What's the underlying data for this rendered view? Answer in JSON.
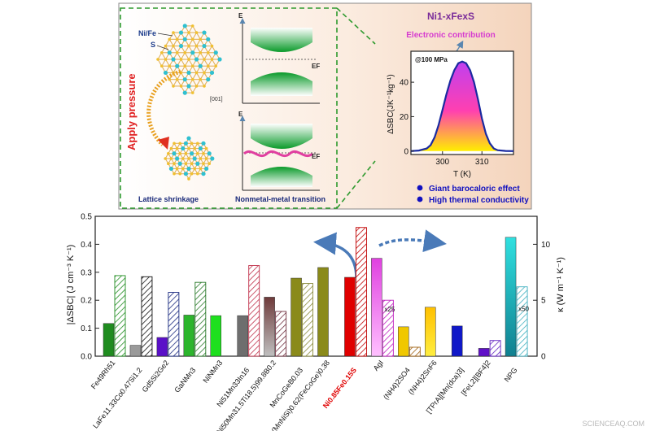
{
  "top_panel": {
    "formula": "Ni1-xFexS",
    "electronic_contribution": "Electronic contribution",
    "apply_pressure": "Apply pressure",
    "ni_fe_label": "Ni/Fe",
    "s_label": "S",
    "direction_label": "[001]",
    "lattice_caption": "Lattice shrinkage",
    "transition_caption": "Nonmetal-metal transition",
    "band_axis_label": "E",
    "fermi_label": "EF",
    "bullets": [
      "Giant barocaloric effect",
      "High thermal conductivity"
    ],
    "colors": {
      "background_right": "#f6dcc8",
      "dashed_border": "#2e9a2e",
      "formula": "#7a2c9a",
      "electronic": "#d63bd0",
      "bullet": "#1010c0"
    }
  },
  "watermark": "SCIENCEAQ.COM",
  "chart_data": [
    {
      "type": "area",
      "title": "Ni1-xFexS",
      "annotation": "@100 MPa",
      "xlabel": "T (K)",
      "ylabel": "ΔSBC(JK⁻¹kg⁻¹)",
      "xlim": [
        292,
        318
      ],
      "ylim": [
        -2,
        58
      ],
      "xticks": [
        300,
        310
      ],
      "yticks": [
        0,
        20,
        40
      ],
      "x": [
        292,
        294,
        296,
        297,
        298,
        299,
        300,
        301,
        302,
        303,
        304,
        305,
        306,
        307,
        308,
        309,
        310,
        311,
        312,
        313,
        314,
        316,
        318
      ],
      "y": [
        0,
        0.3,
        1.5,
        3.5,
        8,
        15,
        24,
        33,
        41,
        47,
        51,
        52,
        51,
        47,
        40,
        30,
        19,
        10,
        4.5,
        1.5,
        0.5,
        0.1,
        0
      ]
    },
    {
      "type": "bar",
      "ylabel_left": "|ΔSBC| (J cm⁻³ K⁻¹)",
      "ylabel_right": "κ (W m⁻¹ K⁻¹)",
      "ylim_left": [
        0,
        0.5
      ],
      "yticks_left": [
        "0.0",
        "0.1",
        "0.2",
        "0.3",
        "0.4",
        "0.5"
      ],
      "ylim_right": [
        0,
        12.5
      ],
      "yticks_right": [
        "0",
        "5",
        "10"
      ],
      "series": [
        {
          "name": "|ΔSBC|",
          "axis": "left"
        },
        {
          "name": "κ",
          "axis": "right"
        }
      ],
      "categories": [
        {
          "label": "Fe49Rh51",
          "color": "#1f8c1f",
          "ds": 0.117,
          "kappa": 7.2,
          "row": 0
        },
        {
          "label": "LaFe11.33Co0.47Si1.2",
          "color": "#9a9a9a",
          "ds": 0.039,
          "kappa": 7.1,
          "hatch": "#111111",
          "row": 1
        },
        {
          "label": "Gd5Si2Ge2",
          "color": "#5a10c8",
          "ds": 0.067,
          "kappa": 5.7,
          "hatch": "#1a2a80",
          "row": 0
        },
        {
          "label": "GaNMn3",
          "color": "#2cb52c",
          "ds": 0.147,
          "kappa": 6.6,
          "hatch": "#2a7a2a",
          "row": 1
        },
        {
          "label": "NiNMn3",
          "color": "#1ee01e",
          "ds": 0.145,
          "row": 0
        },
        {
          "label": "Ni51Mn33In16",
          "color": "#6e6e6e",
          "ds": 0.145,
          "kappa": 8.1,
          "hatch": "#c0304a",
          "row": 1
        },
        {
          "label": "(Ni50Mn31.5Ti18.5)99.8B0.2",
          "color": "#7a5a5a",
          "ds": 0.211,
          "kappa": 4.0,
          "hatch": "#703040",
          "row": 0
        },
        {
          "label": "MnCoGeB0.03",
          "color": "#8a8a1a",
          "ds": 0.279,
          "kappa": 6.5,
          "hatch": "#8a8a3a",
          "row": 1
        },
        {
          "label": "(MnNiSi)0.62(FeCoGe)0.38",
          "color": "#8a8a1a",
          "ds": 0.317,
          "row": 0
        },
        {
          "label": "Ni0.85Fe0.15S",
          "color": "#e00000",
          "ds": 0.282,
          "kappa": 11.5,
          "hatch": "#c00000",
          "row": 1,
          "highlight": true
        },
        {
          "label": "AgI",
          "color": "#e020e0",
          "ds": 0.35,
          "kappa": 5.0,
          "hatch": "#c020c0",
          "row": 0,
          "kappa_note": "x25"
        },
        {
          "label": "(NH4)2SO4",
          "color": "#f0c800",
          "ds": 0.105,
          "kappa": 0.8,
          "hatch": "#a06010",
          "row": 1
        },
        {
          "label": "(NH4)2SnF6",
          "color": "#ffb000",
          "ds": 0.175,
          "row": 0
        },
        {
          "label": "[TPrA][Mn(dca)3]",
          "color": "#1018c8",
          "ds": 0.108,
          "row": 1
        },
        {
          "label": "[FeL2][BF4]2",
          "color": "#6010c8",
          "ds": 0.028,
          "kappa": 1.4,
          "hatch": "#6020c0",
          "row": 0
        },
        {
          "label": "NPG",
          "color": "#30d8d0",
          "ds": 0.425,
          "kappa": 6.2,
          "hatch": "#40b0c0",
          "row": 1,
          "kappa_note": "x50"
        }
      ]
    }
  ]
}
